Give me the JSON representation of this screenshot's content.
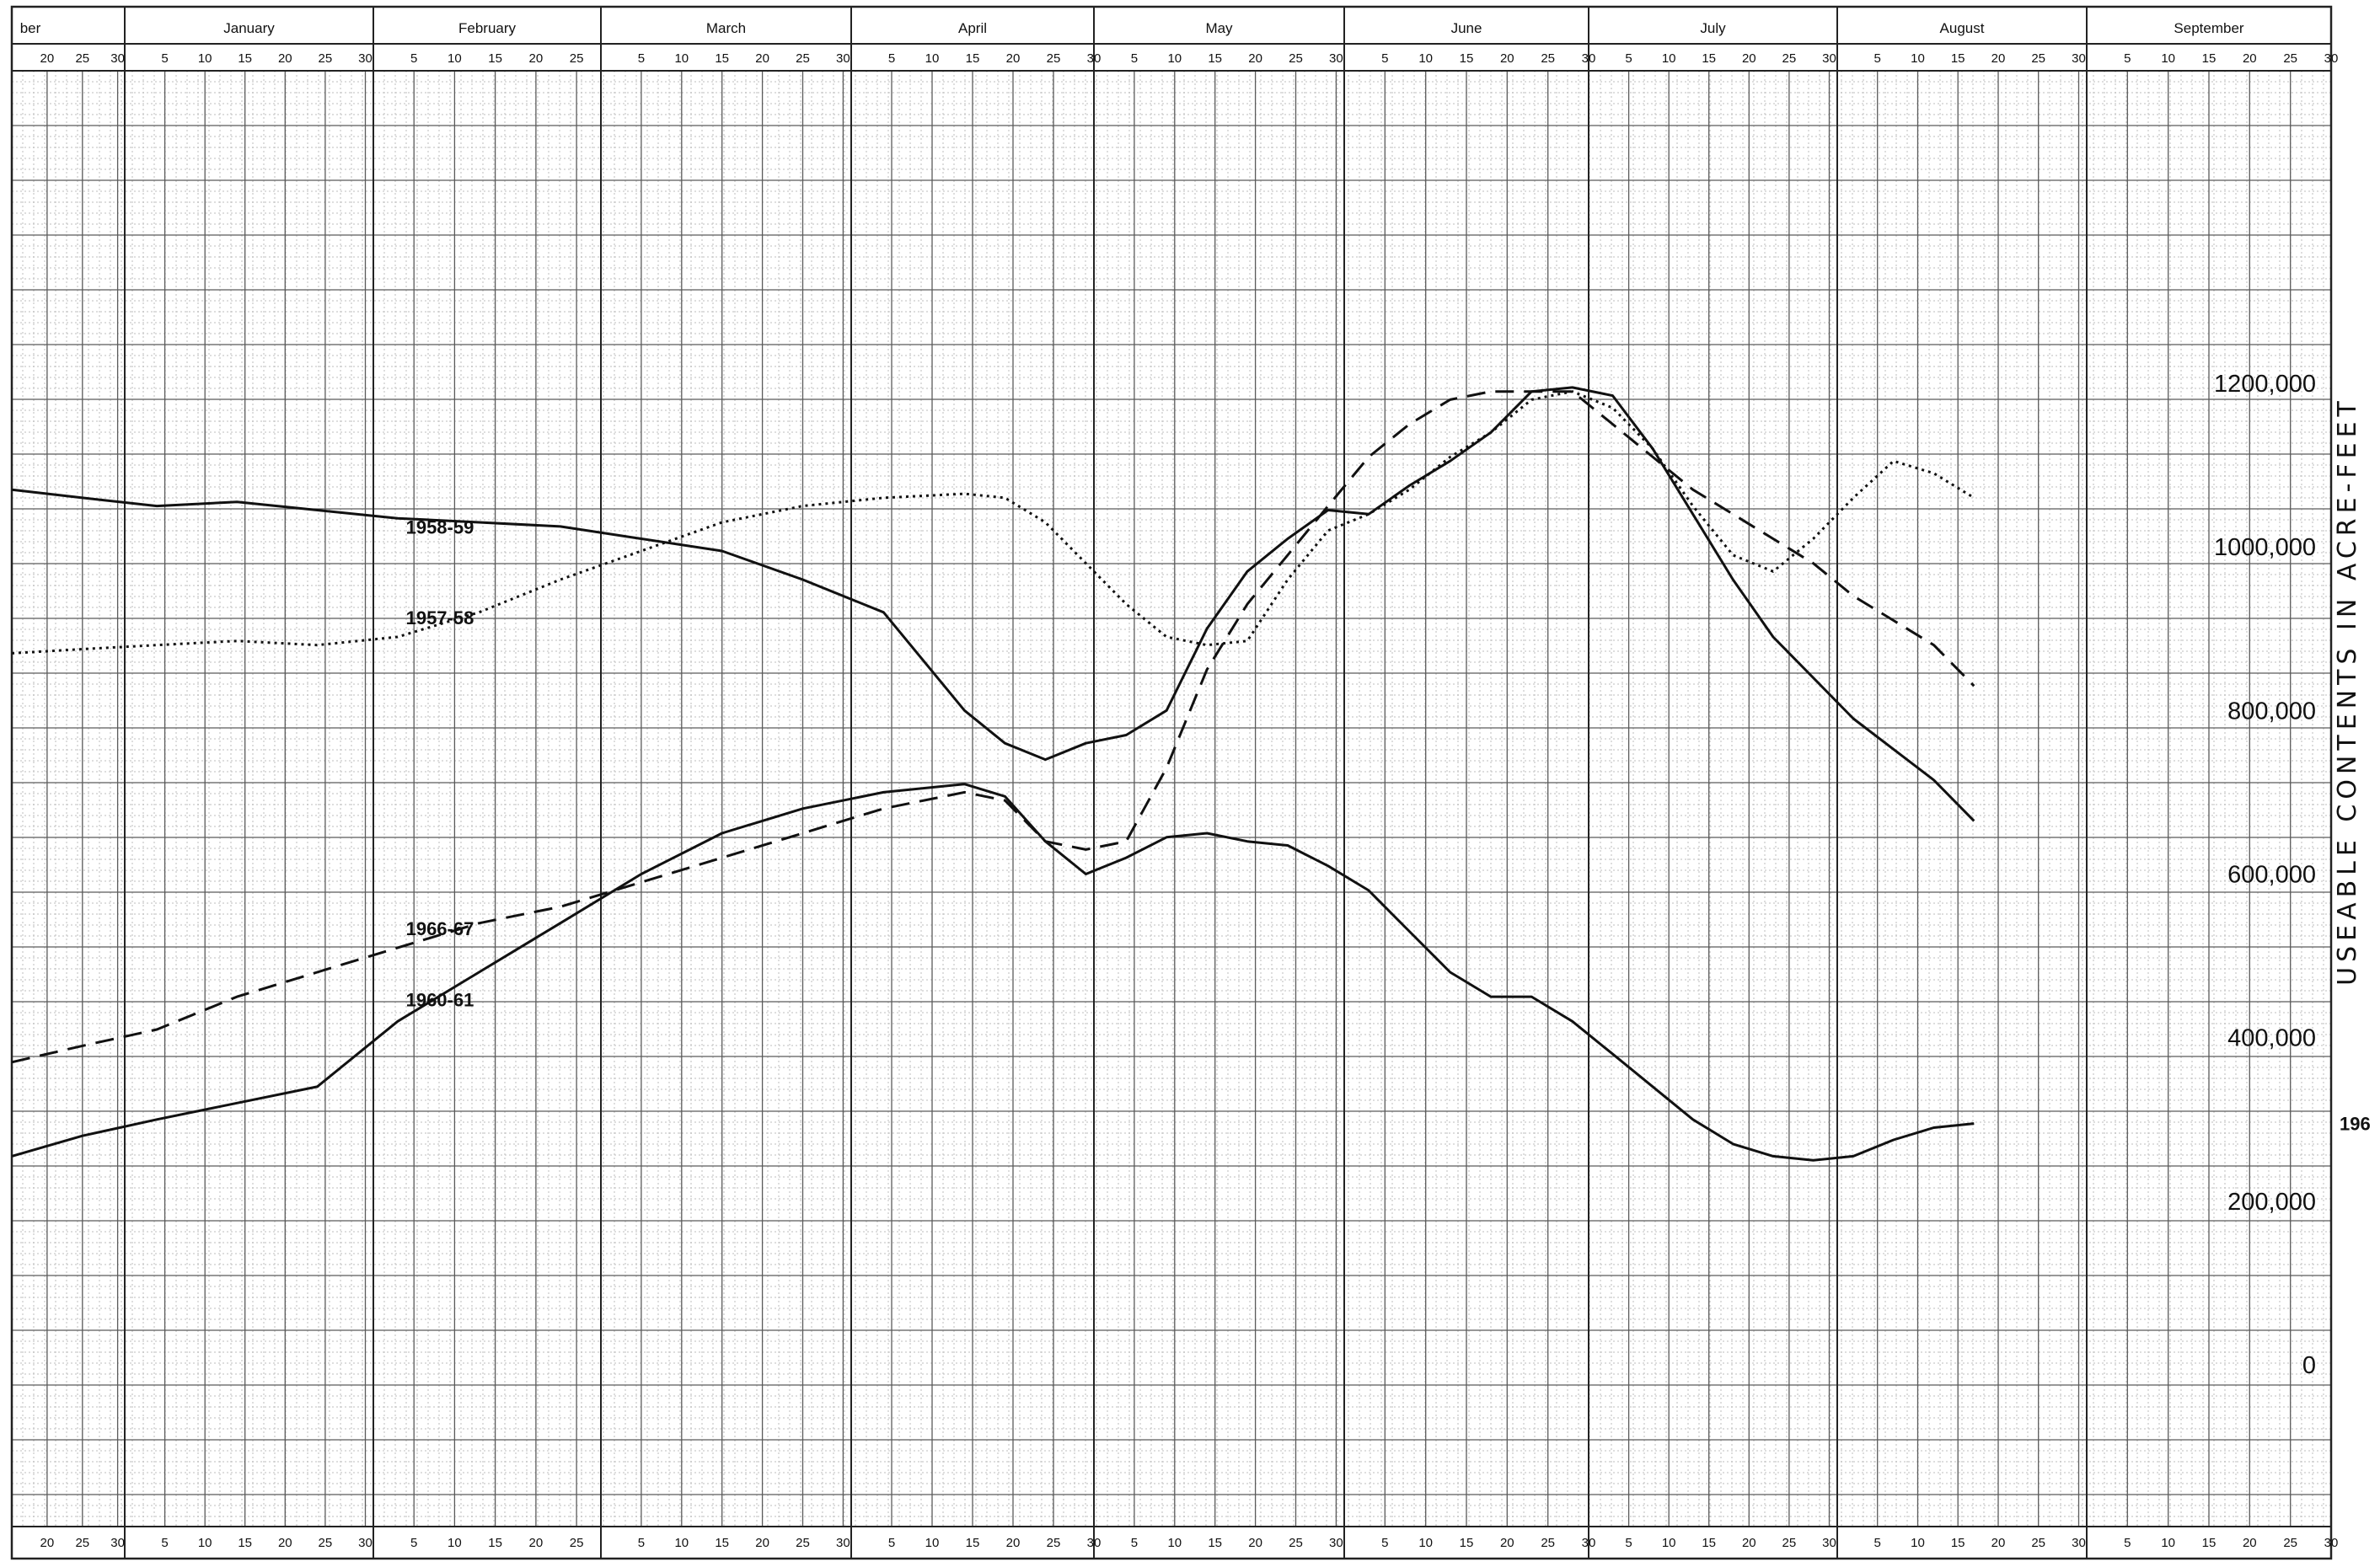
{
  "chart_data": {
    "type": "line",
    "title": "",
    "xlabel": "",
    "ylabel": "USEABLE CONTENTS IN ACRE-FEET",
    "ylim": [
      -30000,
      1450000
    ],
    "grid": true,
    "axis_side": "right",
    "months": [
      {
        "name": "ber",
        "days": [
          "20",
          "25",
          "30"
        ]
      },
      {
        "name": "January",
        "days": [
          "5",
          "10",
          "15",
          "20",
          "25",
          "30"
        ]
      },
      {
        "name": "February",
        "days": [
          "5",
          "10",
          "15",
          "20",
          "25"
        ]
      },
      {
        "name": "March",
        "days": [
          "5",
          "10",
          "15",
          "20",
          "25",
          "30"
        ]
      },
      {
        "name": "April",
        "days": [
          "5",
          "10",
          "15",
          "20",
          "25",
          "30"
        ]
      },
      {
        "name": "May",
        "days": [
          "5",
          "10",
          "15",
          "20",
          "25",
          "30"
        ]
      },
      {
        "name": "June",
        "days": [
          "5",
          "10",
          "15",
          "20",
          "25",
          "30"
        ]
      },
      {
        "name": "July",
        "days": [
          "5",
          "10",
          "15",
          "20",
          "25",
          "30"
        ]
      },
      {
        "name": "August",
        "days": [
          "5",
          "10",
          "15",
          "20",
          "25",
          "30"
        ]
      },
      {
        "name": "September",
        "days": [
          "5",
          "10",
          "15",
          "20",
          "25",
          "30"
        ]
      }
    ],
    "bottom_days": [
      "20",
      "25",
      "30",
      "5",
      "10",
      "15",
      "20",
      "25",
      "30",
      "5",
      "10",
      "15",
      "20",
      "25",
      "5",
      "10",
      "15",
      "20",
      "25",
      "30",
      "5",
      "10",
      "15",
      "20",
      "25",
      "30",
      "5",
      "10",
      "15",
      "20",
      "25",
      "30",
      "5",
      "10",
      "15",
      "20",
      "25",
      "30",
      "5",
      "10",
      "15",
      "20",
      "25",
      "30",
      "5",
      "10",
      "15",
      "20",
      "25",
      "30",
      "5",
      "10",
      "15",
      "20",
      "25",
      "30"
    ],
    "y_ticks": [
      {
        "value": 1200000,
        "label": "1200,000"
      },
      {
        "value": 1000000,
        "label": "1000,000"
      },
      {
        "value": 800000,
        "label": "800,000"
      },
      {
        "value": 600000,
        "label": "600,000"
      },
      {
        "value": 400000,
        "label": "400,000"
      },
      {
        "value": 200000,
        "label": "200,000"
      },
      {
        "value": 0,
        "label": "0"
      }
    ],
    "x_unit": "days from Dec 15",
    "series": [
      {
        "name": "1958-59",
        "style": "solid",
        "x": [
          0,
          10,
          20,
          30,
          40,
          50,
          60,
          70,
          80,
          90,
          100,
          110,
          120,
          125,
          130,
          135,
          140,
          145,
          150,
          155,
          160,
          165,
          170,
          175,
          180,
          185,
          190,
          195,
          200,
          205,
          210,
          215,
          220,
          230,
          240,
          245
        ],
        "values": [
          1070000,
          1060000,
          1050000,
          1055000,
          1045000,
          1035000,
          1030000,
          1025000,
          1010000,
          995000,
          960000,
          920000,
          800000,
          760000,
          740000,
          760000,
          770000,
          800000,
          900000,
          970000,
          1010000,
          1045000,
          1040000,
          1075000,
          1105000,
          1140000,
          1190000,
          1195000,
          1185000,
          1120000,
          1040000,
          960000,
          890000,
          790000,
          715000,
          665000
        ]
      },
      {
        "name": "1957-58",
        "style": "dotted",
        "x": [
          0,
          10,
          20,
          30,
          40,
          50,
          60,
          70,
          80,
          90,
          100,
          110,
          120,
          125,
          130,
          135,
          140,
          145,
          150,
          155,
          160,
          165,
          170,
          175,
          180,
          185,
          190,
          195,
          200,
          205,
          210,
          215,
          220,
          225,
          230,
          235,
          240,
          245
        ],
        "values": [
          870000,
          875000,
          880000,
          885000,
          880000,
          890000,
          920000,
          960000,
          995000,
          1030000,
          1050000,
          1060000,
          1065000,
          1060000,
          1030000,
          980000,
          930000,
          890000,
          880000,
          885000,
          960000,
          1020000,
          1040000,
          1070000,
          1110000,
          1140000,
          1180000,
          1190000,
          1170000,
          1120000,
          1050000,
          990000,
          970000,
          1010000,
          1060000,
          1105000,
          1090000,
          1060000
        ]
      },
      {
        "name": "1966-67",
        "style": "dashed",
        "x": [
          0,
          10,
          20,
          30,
          40,
          50,
          60,
          70,
          80,
          90,
          100,
          110,
          120,
          125,
          130,
          135,
          140,
          145,
          150,
          155,
          160,
          165,
          170,
          175,
          180,
          185,
          190,
          195,
          200,
          205,
          210,
          215,
          220,
          225,
          230,
          235,
          240,
          245
        ],
        "values": [
          370000,
          390000,
          410000,
          450000,
          480000,
          510000,
          540000,
          560000,
          590000,
          620000,
          650000,
          680000,
          700000,
          690000,
          640000,
          630000,
          640000,
          730000,
          850000,
          930000,
          990000,
          1050000,
          1110000,
          1150000,
          1180000,
          1190000,
          1190000,
          1190000,
          1150000,
          1110000,
          1070000,
          1040000,
          1010000,
          980000,
          940000,
          910000,
          880000,
          830000
        ]
      },
      {
        "name": "1960-61",
        "style": "solid",
        "x": [
          0,
          10,
          20,
          30,
          40,
          50,
          60,
          70,
          80,
          90,
          100,
          110,
          120,
          125,
          130,
          135,
          140,
          145,
          150,
          155,
          160,
          165,
          170,
          175,
          180,
          185,
          190,
          195,
          200,
          205,
          210,
          215,
          220,
          225,
          230,
          235,
          240,
          245
        ],
        "values": [
          255000,
          280000,
          300000,
          320000,
          340000,
          420000,
          480000,
          540000,
          600000,
          650000,
          680000,
          700000,
          710000,
          695000,
          640000,
          600000,
          620000,
          645000,
          650000,
          640000,
          635000,
          610000,
          580000,
          530000,
          480000,
          450000,
          450000,
          420000,
          380000,
          340000,
          300000,
          270000,
          255000,
          250000,
          255000,
          275000,
          290000,
          295000
        ]
      }
    ],
    "series_labels": [
      {
        "series": "1958-59",
        "text": "1958-59"
      },
      {
        "series": "1957-58",
        "text": "1957-58"
      },
      {
        "series": "1966-67",
        "text": "1966-67"
      },
      {
        "series": "1960-61",
        "text": "1960-61"
      },
      {
        "series": "1960-61",
        "text": "196"
      }
    ]
  }
}
